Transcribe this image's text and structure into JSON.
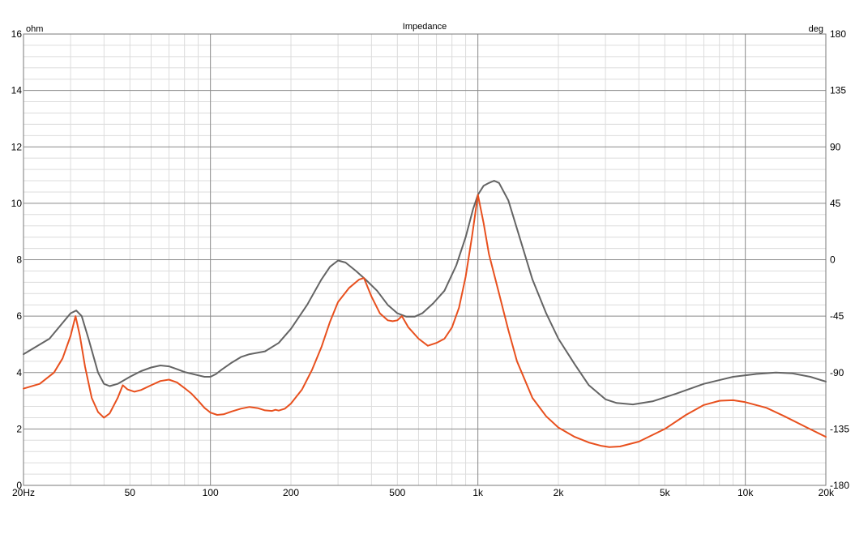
{
  "chart_data": {
    "type": "line",
    "title": "Impedance",
    "left_unit": "ohm",
    "right_unit": "deg",
    "x_scale": "log",
    "xlim": [
      20,
      20000
    ],
    "ylim_left": [
      0,
      16
    ],
    "ylim_right": [
      -180,
      180
    ],
    "grid": true,
    "x_ticks": [
      {
        "value": 20,
        "label": "20Hz"
      },
      {
        "value": 50,
        "label": "50"
      },
      {
        "value": 100,
        "label": "100"
      },
      {
        "value": 200,
        "label": "200"
      },
      {
        "value": 500,
        "label": "500"
      },
      {
        "value": 1000,
        "label": "1k"
      },
      {
        "value": 2000,
        "label": "2k"
      },
      {
        "value": 5000,
        "label": "5k"
      },
      {
        "value": 10000,
        "label": "10k"
      },
      {
        "value": 20000,
        "label": "20k"
      }
    ],
    "y_ticks_left": [
      {
        "value": 0,
        "label": "0"
      },
      {
        "value": 2,
        "label": "2"
      },
      {
        "value": 4,
        "label": "4"
      },
      {
        "value": 6,
        "label": "6"
      },
      {
        "value": 8,
        "label": "8"
      },
      {
        "value": 10,
        "label": "10"
      },
      {
        "value": 12,
        "label": "12"
      },
      {
        "value": 14,
        "label": "14"
      },
      {
        "value": 16,
        "label": "16"
      }
    ],
    "y_ticks_right": [
      {
        "value": -180,
        "label": "-180"
      },
      {
        "value": -135,
        "label": "-135"
      },
      {
        "value": -90,
        "label": "-90"
      },
      {
        "value": -45,
        "label": "-45"
      },
      {
        "value": 0,
        "label": "0"
      },
      {
        "value": 45,
        "label": "45"
      },
      {
        "value": 90,
        "label": "90"
      },
      {
        "value": 135,
        "label": "135"
      },
      {
        "value": 180,
        "label": "180"
      }
    ],
    "series": [
      {
        "color": "#646464",
        "axis": "left",
        "points": [
          [
            20,
            4.65
          ],
          [
            25,
            5.2
          ],
          [
            30,
            6.1
          ],
          [
            31.5,
            6.2
          ],
          [
            33,
            6.0
          ],
          [
            35,
            5.2
          ],
          [
            38,
            4.0
          ],
          [
            40,
            3.6
          ],
          [
            42,
            3.52
          ],
          [
            45,
            3.6
          ],
          [
            50,
            3.85
          ],
          [
            55,
            4.05
          ],
          [
            60,
            4.18
          ],
          [
            65,
            4.25
          ],
          [
            70,
            4.22
          ],
          [
            75,
            4.12
          ],
          [
            80,
            4.02
          ],
          [
            90,
            3.9
          ],
          [
            95,
            3.85
          ],
          [
            100,
            3.85
          ],
          [
            105,
            3.95
          ],
          [
            110,
            4.1
          ],
          [
            120,
            4.35
          ],
          [
            130,
            4.55
          ],
          [
            140,
            4.65
          ],
          [
            160,
            4.75
          ],
          [
            180,
            5.05
          ],
          [
            200,
            5.55
          ],
          [
            230,
            6.4
          ],
          [
            260,
            7.3
          ],
          [
            280,
            7.75
          ],
          [
            300,
            7.97
          ],
          [
            320,
            7.9
          ],
          [
            350,
            7.6
          ],
          [
            380,
            7.3
          ],
          [
            420,
            6.9
          ],
          [
            460,
            6.4
          ],
          [
            500,
            6.1
          ],
          [
            540,
            5.98
          ],
          [
            580,
            5.98
          ],
          [
            620,
            6.1
          ],
          [
            680,
            6.45
          ],
          [
            750,
            6.9
          ],
          [
            830,
            7.8
          ],
          [
            900,
            8.8
          ],
          [
            960,
            9.8
          ],
          [
            1000,
            10.3
          ],
          [
            1050,
            10.62
          ],
          [
            1100,
            10.72
          ],
          [
            1150,
            10.8
          ],
          [
            1200,
            10.72
          ],
          [
            1300,
            10.1
          ],
          [
            1400,
            9.1
          ],
          [
            1600,
            7.3
          ],
          [
            1800,
            6.1
          ],
          [
            2000,
            5.2
          ],
          [
            2300,
            4.3
          ],
          [
            2600,
            3.55
          ],
          [
            3000,
            3.05
          ],
          [
            3300,
            2.92
          ],
          [
            3800,
            2.87
          ],
          [
            4500,
            2.98
          ],
          [
            5500,
            3.25
          ],
          [
            7000,
            3.6
          ],
          [
            9000,
            3.85
          ],
          [
            11000,
            3.95
          ],
          [
            13000,
            4.0
          ],
          [
            15000,
            3.97
          ],
          [
            17500,
            3.85
          ],
          [
            20000,
            3.68
          ]
        ]
      },
      {
        "color": "#e8501e",
        "axis": "left",
        "points": [
          [
            20,
            3.43
          ],
          [
            23,
            3.6
          ],
          [
            26,
            4.0
          ],
          [
            28,
            4.5
          ],
          [
            30,
            5.3
          ],
          [
            31.3,
            6.0
          ],
          [
            32.5,
            5.3
          ],
          [
            34,
            4.2
          ],
          [
            36,
            3.1
          ],
          [
            38,
            2.6
          ],
          [
            40,
            2.4
          ],
          [
            42,
            2.55
          ],
          [
            45,
            3.1
          ],
          [
            47,
            3.55
          ],
          [
            49,
            3.4
          ],
          [
            52,
            3.32
          ],
          [
            55,
            3.38
          ],
          [
            60,
            3.55
          ],
          [
            65,
            3.7
          ],
          [
            70,
            3.75
          ],
          [
            75,
            3.65
          ],
          [
            80,
            3.45
          ],
          [
            85,
            3.25
          ],
          [
            90,
            3.0
          ],
          [
            95,
            2.75
          ],
          [
            100,
            2.58
          ],
          [
            106,
            2.5
          ],
          [
            112,
            2.52
          ],
          [
            120,
            2.62
          ],
          [
            130,
            2.72
          ],
          [
            140,
            2.78
          ],
          [
            150,
            2.74
          ],
          [
            160,
            2.66
          ],
          [
            170,
            2.64
          ],
          [
            175,
            2.68
          ],
          [
            180,
            2.65
          ],
          [
            190,
            2.72
          ],
          [
            200,
            2.9
          ],
          [
            220,
            3.4
          ],
          [
            240,
            4.1
          ],
          [
            260,
            4.9
          ],
          [
            280,
            5.8
          ],
          [
            300,
            6.5
          ],
          [
            330,
            7.0
          ],
          [
            360,
            7.3
          ],
          [
            375,
            7.35
          ],
          [
            400,
            6.7
          ],
          [
            430,
            6.1
          ],
          [
            460,
            5.85
          ],
          [
            480,
            5.82
          ],
          [
            500,
            5.85
          ],
          [
            520,
            6.0
          ],
          [
            550,
            5.6
          ],
          [
            600,
            5.2
          ],
          [
            650,
            4.95
          ],
          [
            700,
            5.05
          ],
          [
            750,
            5.2
          ],
          [
            800,
            5.6
          ],
          [
            850,
            6.3
          ],
          [
            900,
            7.4
          ],
          [
            950,
            8.8
          ],
          [
            1000,
            10.3
          ],
          [
            1050,
            9.3
          ],
          [
            1100,
            8.2
          ],
          [
            1200,
            6.8
          ],
          [
            1300,
            5.5
          ],
          [
            1400,
            4.4
          ],
          [
            1600,
            3.1
          ],
          [
            1800,
            2.45
          ],
          [
            2000,
            2.05
          ],
          [
            2300,
            1.72
          ],
          [
            2600,
            1.52
          ],
          [
            2900,
            1.4
          ],
          [
            3100,
            1.36
          ],
          [
            3400,
            1.38
          ],
          [
            4000,
            1.55
          ],
          [
            5000,
            2.0
          ],
          [
            6000,
            2.5
          ],
          [
            7000,
            2.85
          ],
          [
            8000,
            3.0
          ],
          [
            9000,
            3.02
          ],
          [
            10000,
            2.95
          ],
          [
            12000,
            2.75
          ],
          [
            14000,
            2.45
          ],
          [
            17000,
            2.05
          ],
          [
            20000,
            1.72
          ]
        ]
      }
    ]
  }
}
